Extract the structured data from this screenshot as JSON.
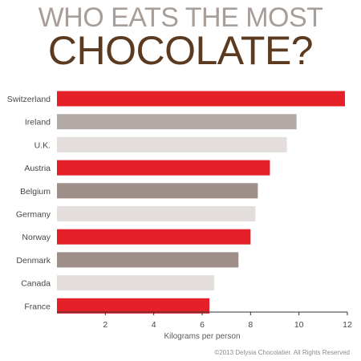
{
  "title_line1": "WHO EATS THE MOST",
  "title_line2": "CHOCOLATE?",
  "copyright": "©2013 Delysia Chocolatier. All Rights Reserved",
  "colors": {
    "red": "#e52029",
    "taupe": "#b3a9a5",
    "light": "#e3dedb",
    "brown_title": "#5c3a1f",
    "gray_title": "#a79e99"
  },
  "chart_data": {
    "type": "bar",
    "orientation": "horizontal",
    "title": "WHO EATS THE MOST CHOCOLATE?",
    "xlabel": "Kilograms per person",
    "ylabel": "",
    "xlim": [
      0,
      12
    ],
    "x_ticks": [
      2,
      4,
      6,
      8,
      10,
      12
    ],
    "grid": false,
    "categories": [
      "Switzerland",
      "Ireland",
      "U.K.",
      "Austria",
      "Belgium",
      "Germany",
      "Norway",
      "Denmark",
      "Canada",
      "France"
    ],
    "values": [
      11.9,
      9.9,
      9.5,
      8.8,
      8.3,
      8.2,
      8.0,
      7.5,
      6.5,
      6.3
    ],
    "bar_colors": [
      "#e52029",
      "#b3a9a5",
      "#e3dedb",
      "#e52029",
      "#9e8f88",
      "#e3dedb",
      "#e52029",
      "#9e8f88",
      "#e3dedb",
      "#e52029"
    ]
  }
}
